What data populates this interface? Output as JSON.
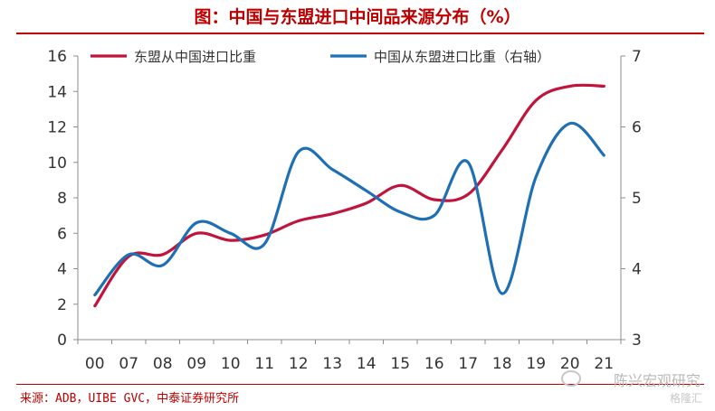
{
  "header": {
    "title": "图：中国与东盟进口中间品来源分布（%）"
  },
  "footer": {
    "source": "来源：ADB，UIBE GVC，中泰证券研究所"
  },
  "watermark": {
    "brand": "陈兴宏观研究",
    "sub": "格隆汇"
  },
  "chart_data": {
    "type": "line",
    "categories": [
      "00",
      "07",
      "08",
      "09",
      "10",
      "11",
      "12",
      "13",
      "14",
      "15",
      "16",
      "17",
      "18",
      "19",
      "20",
      "21"
    ],
    "series": [
      {
        "name": "东盟从中国进口比重",
        "axis": "left",
        "color": "#c0143c",
        "values": [
          1.9,
          4.7,
          4.8,
          6.0,
          5.6,
          5.9,
          6.7,
          7.1,
          7.7,
          8.7,
          7.9,
          8.2,
          10.7,
          13.5,
          14.3,
          14.3
        ]
      },
      {
        "name": "中国从东盟进口比重（右轴）",
        "axis": "right",
        "color": "#1f6fb5",
        "values": [
          3.63,
          4.2,
          4.05,
          4.65,
          4.5,
          4.35,
          5.65,
          5.4,
          5.1,
          4.8,
          4.75,
          5.5,
          3.65,
          5.3,
          6.05,
          5.6
        ]
      }
    ],
    "y_left": {
      "min": 0,
      "max": 16,
      "ticks": [
        0,
        2,
        4,
        6,
        8,
        10,
        12,
        14,
        16
      ]
    },
    "y_right": {
      "min": 3,
      "max": 7,
      "ticks": [
        3,
        4,
        5,
        6,
        7
      ]
    },
    "legend_position": "top",
    "grid": false
  }
}
